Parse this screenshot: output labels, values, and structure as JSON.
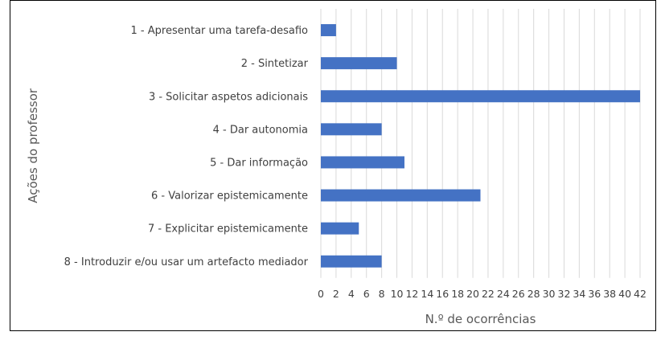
{
  "chart_data": {
    "type": "bar",
    "orientation": "horizontal",
    "title": "",
    "xlabel": "N.º de ocorrências",
    "ylabel": "Ações do professor",
    "categories": [
      "1 - Apresentar uma tarefa-desafio",
      "2 - Sintetizar",
      "3 - Solicitar aspetos adicionais",
      "4 - Dar autonomia",
      "5 - Dar informação",
      "6 - Valorizar epistemicamente",
      "7 - Explicitar epistemicamente",
      "8 - Introduzir e/ou usar um artefacto mediador"
    ],
    "values": [
      2,
      10,
      42,
      8,
      11,
      21,
      5,
      8
    ],
    "xlim": [
      0,
      42
    ],
    "xticks": [
      0,
      2,
      4,
      6,
      8,
      10,
      12,
      14,
      16,
      18,
      20,
      22,
      24,
      26,
      28,
      30,
      32,
      34,
      36,
      38,
      40,
      42
    ],
    "grid": true,
    "legend": "none",
    "colors": {
      "bar": "#4472C4",
      "grid": "#D9D9D9",
      "text": "#404040",
      "axis_title": "#595959"
    }
  }
}
